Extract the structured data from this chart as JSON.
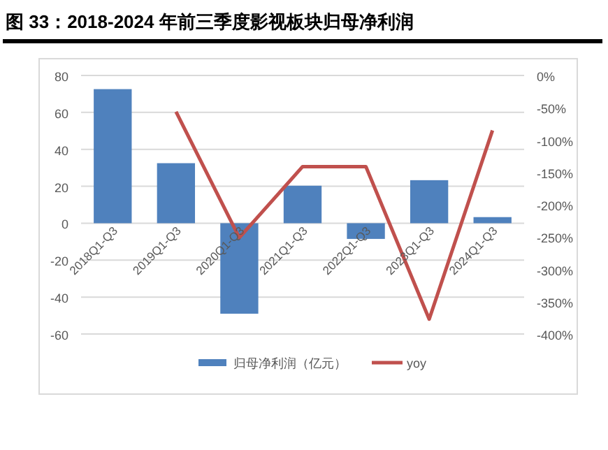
{
  "chart_data": {
    "type": "bar",
    "title": "图 33：2018-2024 年前三季度影视板块归母净利润",
    "categories": [
      "2018Q1-Q3",
      "2019Q1-Q3",
      "2020Q1-Q3",
      "2021Q1-Q3",
      "2022Q1-Q3",
      "2023Q1-Q3",
      "2024Q1-Q3"
    ],
    "series": [
      {
        "name": "归母净利润（亿元）",
        "color": "#4f81bd",
        "values": [
          72.6,
          32.5,
          -49,
          20.3,
          -8.5,
          23.3,
          3.3
        ]
      },
      {
        "name": "yoy",
        "type": "line",
        "axis": "y2",
        "color": "#c0504d",
        "values": [
          null,
          -56,
          -251,
          -141,
          -141,
          -377,
          -85
        ]
      }
    ],
    "ylim": [
      -60,
      80
    ],
    "yticks": [
      -60,
      -40,
      -20,
      0,
      20,
      40,
      60,
      80
    ],
    "y2lim": [
      -400,
      0
    ],
    "y2ticks": [
      {
        "value": -400,
        "label": "-400%"
      },
      {
        "value": -350,
        "label": "-350%"
      },
      {
        "value": -300,
        "label": "-300%"
      },
      {
        "value": -250,
        "label": "-250%"
      },
      {
        "value": -200,
        "label": "-200%"
      },
      {
        "value": -150,
        "label": "-150%"
      },
      {
        "value": -100,
        "label": "-100%"
      },
      {
        "value": -50,
        "label": "-50%"
      },
      {
        "value": 0,
        "label": "0%"
      }
    ],
    "grid": "y",
    "legend": "bottom"
  }
}
